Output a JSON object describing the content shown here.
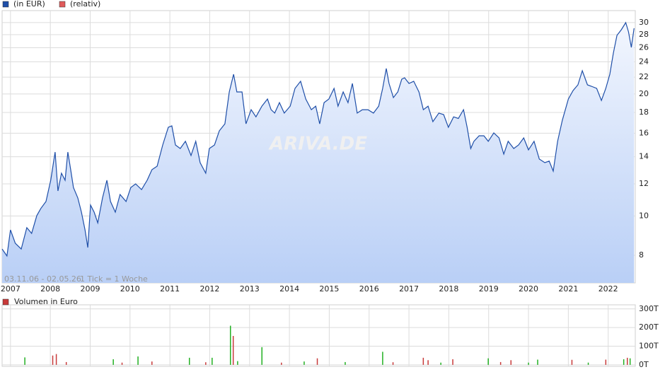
{
  "chart_data": [
    {
      "type": "line",
      "info_range": "03.11.06 - 02.05.26",
      "info_tick": "1 Tick = 1 Woche",
      "watermark": "ARIVA.DE",
      "log_scale": true,
      "grid": true,
      "area": true,
      "xlim": [
        2006.79,
        2022.68
      ],
      "xticks": [
        2007,
        2008,
        2009,
        2010,
        2011,
        2012,
        2013,
        2014,
        2015,
        2016,
        2017,
        2018,
        2019,
        2020,
        2021,
        2022
      ],
      "ylim": [
        6.84,
        32.1
      ],
      "yticks": [
        8,
        10,
        12,
        14,
        16,
        18,
        20,
        22,
        24,
        26,
        28,
        30
      ],
      "x": [
        2006.79,
        2006.91,
        2007.0,
        2007.12,
        2007.27,
        2007.41,
        2007.53,
        2007.66,
        2007.76,
        2007.89,
        2008.01,
        2008.12,
        2008.19,
        2008.28,
        2008.37,
        2008.44,
        2008.51,
        2008.58,
        2008.69,
        2008.78,
        2008.87,
        2008.94,
        2009.01,
        2009.1,
        2009.19,
        2009.31,
        2009.42,
        2009.51,
        2009.63,
        2009.75,
        2009.9,
        2010.02,
        2010.14,
        2010.29,
        2010.43,
        2010.55,
        2010.68,
        2010.82,
        2010.96,
        2011.05,
        2011.14,
        2011.26,
        2011.39,
        2011.53,
        2011.65,
        2011.76,
        2011.9,
        2011.99,
        2012.12,
        2012.24,
        2012.38,
        2012.49,
        2012.6,
        2012.68,
        2012.81,
        2012.91,
        2013.04,
        2013.16,
        2013.31,
        2013.45,
        2013.54,
        2013.63,
        2013.75,
        2013.87,
        2014.02,
        2014.14,
        2014.28,
        2014.41,
        2014.55,
        2014.66,
        2014.76,
        2014.87,
        2014.99,
        2015.12,
        2015.22,
        2015.35,
        2015.47,
        2015.58,
        2015.7,
        2015.83,
        2015.97,
        2016.11,
        2016.24,
        2016.34,
        2016.43,
        2016.5,
        2016.61,
        2016.72,
        2016.82,
        2016.89,
        2017.0,
        2017.12,
        2017.25,
        2017.36,
        2017.48,
        2017.6,
        2017.75,
        2017.87,
        2017.99,
        2018.12,
        2018.24,
        2018.37,
        2018.46,
        2018.55,
        2018.63,
        2018.76,
        2018.88,
        2018.99,
        2019.13,
        2019.26,
        2019.38,
        2019.49,
        2019.63,
        2019.75,
        2019.88,
        2020.0,
        2020.14,
        2020.27,
        2020.41,
        2020.52,
        2020.62,
        2020.73,
        2020.85,
        2021.0,
        2021.12,
        2021.24,
        2021.35,
        2021.48,
        2021.58,
        2021.71,
        2021.83,
        2021.94,
        2022.04,
        2022.13,
        2022.22,
        2022.33,
        2022.44,
        2022.51,
        2022.58,
        2022.65
      ],
      "series": [
        {
          "name": "(in EUR)",
          "color": "#1f4fa8",
          "values": [
            8.29,
            7.97,
            9.24,
            8.57,
            8.29,
            9.36,
            9.06,
            10.02,
            10.43,
            10.86,
            12.25,
            14.38,
            11.53,
            12.75,
            12.25,
            14.38,
            13.01,
            11.76,
            11.08,
            10.22,
            9.24,
            8.36,
            10.64,
            10.22,
            9.62,
            11.08,
            12.25,
            10.86,
            10.22,
            11.3,
            10.86,
            11.76,
            12.0,
            11.62,
            12.25,
            13.01,
            13.27,
            14.97,
            16.55,
            16.68,
            14.97,
            14.67,
            15.28,
            14.1,
            15.28,
            13.54,
            12.75,
            14.67,
            14.97,
            16.22,
            16.88,
            20.23,
            22.36,
            20.23,
            20.23,
            16.88,
            18.29,
            17.56,
            18.66,
            19.43,
            18.29,
            17.94,
            19.04,
            17.94,
            18.66,
            20.64,
            21.49,
            19.43,
            18.29,
            18.66,
            16.88,
            19.04,
            19.43,
            20.64,
            18.66,
            20.23,
            19.04,
            21.23,
            17.94,
            18.29,
            18.29,
            17.94,
            18.66,
            20.64,
            23.1,
            21.23,
            19.59,
            20.23,
            21.75,
            21.92,
            21.23,
            21.49,
            20.23,
            18.29,
            18.66,
            17.09,
            17.94,
            17.79,
            16.55,
            17.56,
            17.4,
            18.29,
            16.55,
            14.67,
            15.28,
            15.77,
            15.77,
            15.28,
            16.03,
            15.58,
            14.21,
            15.28,
            14.67,
            14.97,
            15.58,
            14.56,
            15.28,
            13.82,
            13.54,
            13.66,
            12.9,
            15.28,
            17.23,
            19.43,
            20.39,
            21.06,
            22.82,
            21.06,
            20.89,
            20.64,
            19.27,
            20.64,
            22.36,
            25.22,
            27.89,
            28.8,
            29.98,
            28.46,
            26.05,
            29.04
          ]
        },
        {
          "name": "(relativ)",
          "color": "#e05a5a"
        }
      ]
    },
    {
      "type": "bar",
      "title": "Volumen in Euro",
      "legend_color": "#c83a3a",
      "ylim": [
        -8,
        322
      ],
      "yticks": [
        {
          "value": 0,
          "label": "0T"
        },
        {
          "value": 100,
          "label": "100T"
        },
        {
          "value": 200,
          "label": "200T"
        },
        {
          "value": 300,
          "label": "300T"
        }
      ],
      "x": [
        2007.36,
        2008.06,
        2008.15,
        2008.4,
        2009.58,
        2009.8,
        2010.2,
        2010.55,
        2011.49,
        2011.9,
        2012.06,
        2012.52,
        2012.59,
        2012.7,
        2013.31,
        2013.8,
        2014.37,
        2014.7,
        2015.4,
        2016.34,
        2016.6,
        2017.36,
        2017.48,
        2017.8,
        2018.1,
        2018.99,
        2019.3,
        2019.56,
        2020.0,
        2020.23,
        2021.09,
        2021.5,
        2021.94,
        2022.39,
        2022.48,
        2022.55
      ],
      "values": [
        40,
        50,
        58,
        15,
        30,
        12,
        45,
        18,
        38,
        14,
        38,
        210,
        155,
        20,
        95,
        12,
        18,
        35,
        15,
        70,
        14,
        38,
        25,
        12,
        30,
        35,
        15,
        25,
        12,
        28,
        27,
        12,
        28,
        30,
        38,
        35
      ],
      "colors": [
        "#22b022",
        "#c83a3a",
        "#c83a3a",
        "#c83a3a",
        "#22b022",
        "#c83a3a",
        "#22b022",
        "#c83a3a",
        "#22b022",
        "#c83a3a",
        "#22b022",
        "#22b022",
        "#c83a3a",
        "#22b022",
        "#22b022",
        "#c83a3a",
        "#22b022",
        "#c83a3a",
        "#22b022",
        "#22b022",
        "#c83a3a",
        "#c83a3a",
        "#c83a3a",
        "#22b022",
        "#c83a3a",
        "#22b022",
        "#c83a3a",
        "#c83a3a",
        "#22b022",
        "#22b022",
        "#c83a3a",
        "#22b022",
        "#c83a3a",
        "#22b022",
        "#c83a3a",
        "#22b022"
      ]
    }
  ]
}
